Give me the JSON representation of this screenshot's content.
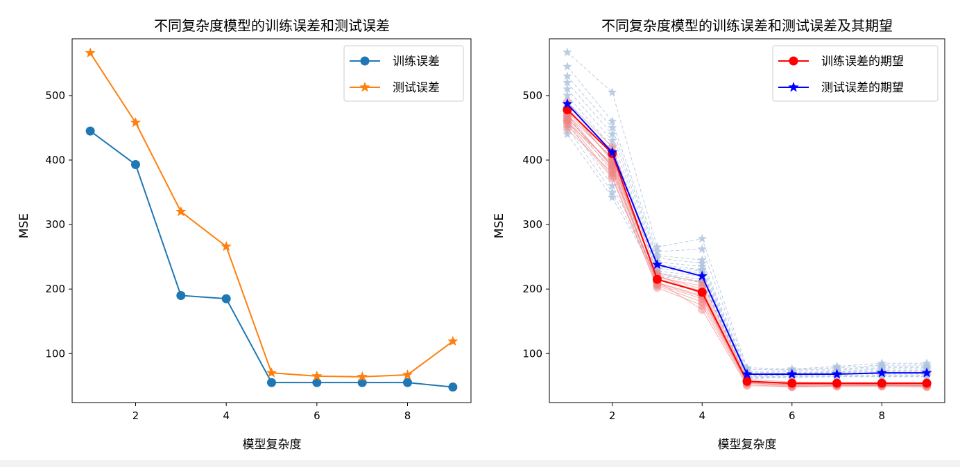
{
  "chart_data": [
    {
      "type": "line",
      "title": "不同复杂度模型的训练误差和测试误差",
      "xlabel": "模型复杂度",
      "ylabel": "MSE",
      "xlim": [
        0.6,
        9.4
      ],
      "ylim": [
        24,
        588
      ],
      "xticks": [
        2,
        4,
        6,
        8
      ],
      "yticks": [
        100,
        200,
        300,
        400,
        500
      ],
      "legend": {
        "placement": "top-right",
        "items": [
          "训练误差",
          "测试误差"
        ]
      },
      "x": [
        1,
        2,
        3,
        4,
        5,
        6,
        7,
        8,
        9
      ],
      "series": [
        {
          "name": "训练误差",
          "color": "#1f77b4",
          "marker": "circle",
          "values": [
            445,
            393,
            190,
            185,
            55,
            55,
            55,
            55,
            48
          ]
        },
        {
          "name": "测试误差",
          "color": "#ff7f0e",
          "marker": "star",
          "values": [
            566,
            458,
            320,
            266,
            70,
            65,
            64,
            67,
            119
          ]
        }
      ]
    },
    {
      "type": "line",
      "title": "不同复杂度模型的训练误差和测试误差及其期望",
      "xlabel": "模型复杂度",
      "ylabel": "MSE",
      "xlim": [
        0.6,
        9.4
      ],
      "ylim": [
        24,
        588
      ],
      "xticks": [
        2,
        4,
        6,
        8
      ],
      "yticks": [
        100,
        200,
        300,
        400,
        500
      ],
      "legend": {
        "placement": "top-right",
        "items": [
          "训练误差的期望",
          "测试误差的期望"
        ]
      },
      "x": [
        1,
        2,
        3,
        4,
        5,
        6,
        7,
        8,
        9
      ],
      "series": [
        {
          "name": "训练误差的期望",
          "color": "#ff0000",
          "marker": "circle",
          "values": [
            478,
            410,
            215,
            195,
            57,
            54,
            54,
            54,
            54
          ]
        },
        {
          "name": "测试误差的期望",
          "color": "#0000ff",
          "marker": "star",
          "values": [
            487,
            412,
            238,
            220,
            68,
            68,
            68,
            70,
            70
          ]
        }
      ],
      "background_runs": {
        "train_color": "#f08080",
        "test_color": "#b0c4de",
        "train": [
          [
            482,
            398,
            218,
            205,
            58,
            52,
            52,
            52,
            51
          ],
          [
            471,
            388,
            210,
            190,
            55,
            50,
            51,
            51,
            50
          ],
          [
            460,
            375,
            205,
            180,
            54,
            49,
            50,
            50,
            49
          ],
          [
            455,
            372,
            202,
            175,
            52,
            48,
            49,
            49,
            48
          ],
          [
            448,
            380,
            212,
            168,
            50,
            49,
            50,
            50,
            50
          ],
          [
            465,
            392,
            220,
            200,
            56,
            53,
            53,
            53,
            53
          ],
          [
            475,
            402,
            216,
            197,
            57,
            54,
            54,
            54,
            54
          ],
          [
            462,
            385,
            207,
            185,
            55,
            51,
            52,
            52,
            51
          ],
          [
            458,
            395,
            222,
            192,
            57,
            53,
            53,
            53,
            53
          ],
          [
            490,
            420,
            225,
            210,
            60,
            56,
            55,
            55,
            55
          ],
          [
            470,
            404,
            214,
            196,
            56,
            52,
            52,
            52,
            52
          ],
          [
            466,
            390,
            209,
            188,
            55,
            51,
            52,
            51,
            51
          ]
        ],
        "test": [
          [
            567,
            505,
            265,
            278,
            78,
            76,
            80,
            85,
            85
          ],
          [
            545,
            460,
            258,
            262,
            75,
            75,
            78,
            82,
            82
          ],
          [
            530,
            450,
            252,
            245,
            72,
            74,
            76,
            80,
            80
          ],
          [
            520,
            440,
            248,
            240,
            70,
            72,
            74,
            78,
            78
          ],
          [
            510,
            430,
            242,
            235,
            68,
            70,
            72,
            76,
            76
          ],
          [
            500,
            420,
            238,
            230,
            67,
            69,
            71,
            74,
            74
          ],
          [
            490,
            410,
            235,
            228,
            66,
            68,
            70,
            72,
            72
          ],
          [
            480,
            400,
            232,
            225,
            65,
            67,
            69,
            70,
            70
          ],
          [
            470,
            380,
            228,
            220,
            64,
            66,
            68,
            68,
            68
          ],
          [
            460,
            360,
            225,
            215,
            63,
            65,
            66,
            66,
            66
          ],
          [
            450,
            350,
            222,
            212,
            62,
            64,
            65,
            65,
            65
          ],
          [
            440,
            342,
            220,
            210,
            61,
            63,
            64,
            64,
            64
          ]
        ]
      }
    }
  ]
}
